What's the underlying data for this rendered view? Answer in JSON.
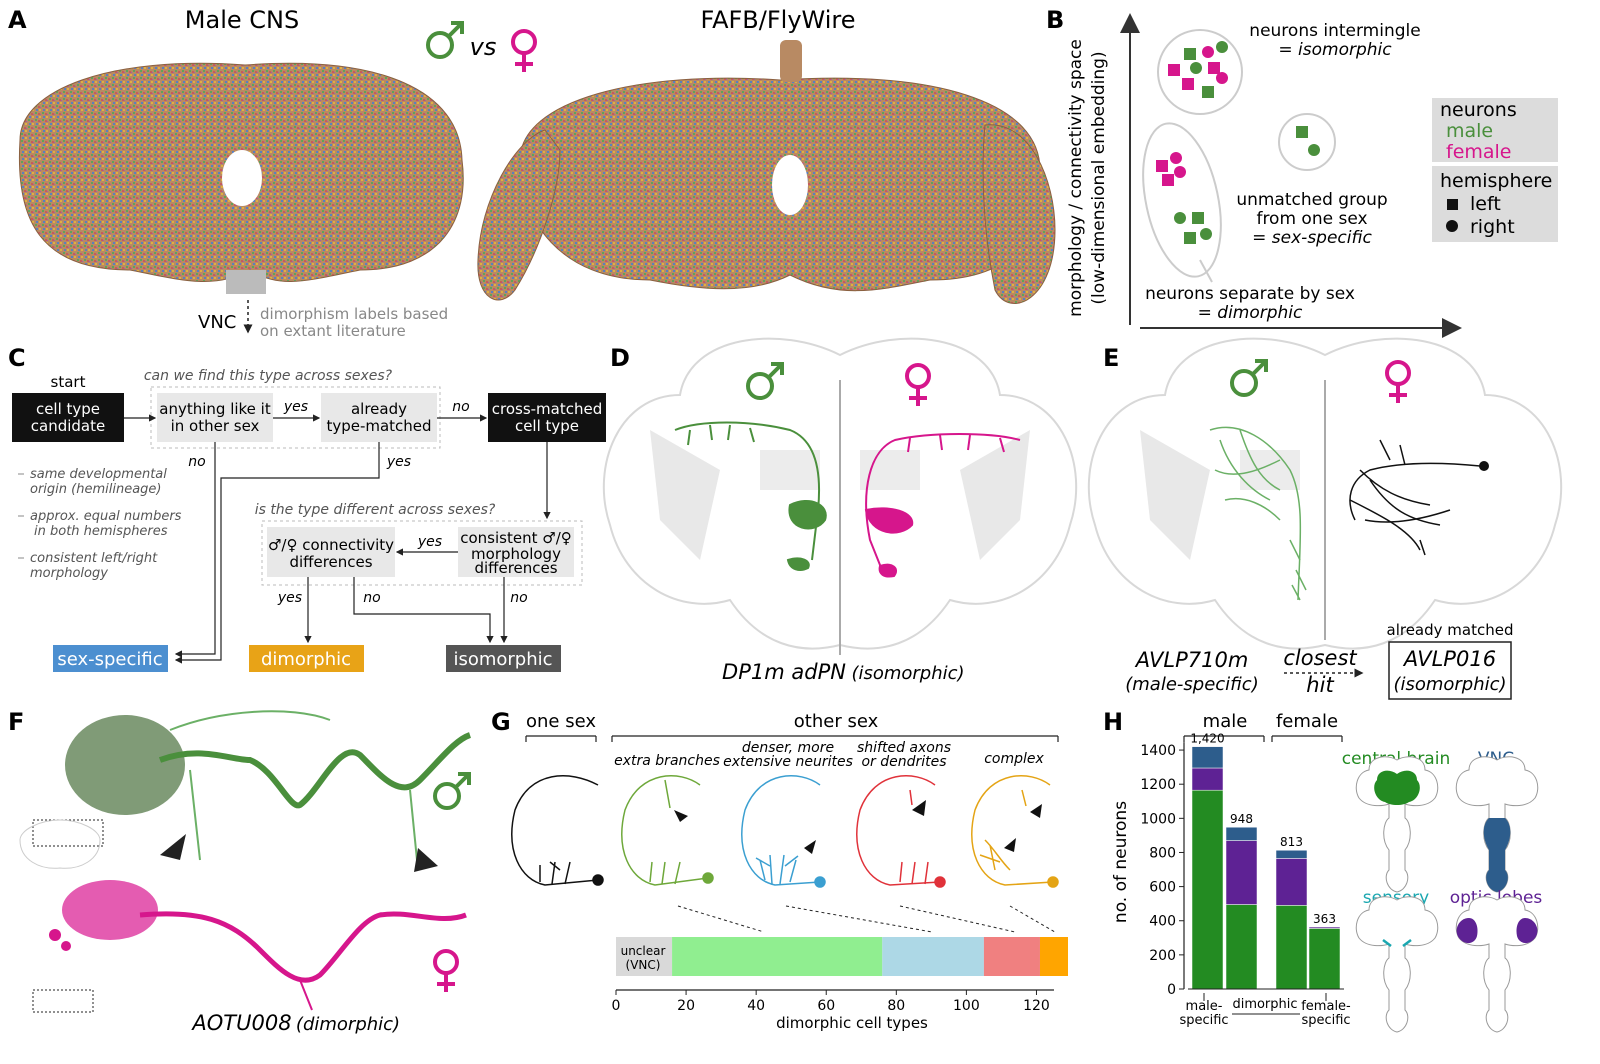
{
  "panels": {
    "A": {
      "letter": "A",
      "left_title": "Male CNS",
      "right_title": "FAFB/FlyWire",
      "vs": "vs",
      "vnc_label": "VNC",
      "dimorphism_note_1": "dimorphism labels based",
      "dimorphism_note_2": "on extant literature"
    },
    "B": {
      "letter": "B",
      "y_axis_1": "morphology / connectivity space",
      "y_axis_2": "(low-dimensional embedding)",
      "iso_1": "neurons intermingle",
      "iso_2": "= isomorphic",
      "spec_1": "unmatched group",
      "spec_2": "from one sex",
      "spec_3": "= sex-specific",
      "dim_1": "neurons separate by sex",
      "dim_2": "= dimorphic",
      "legend": {
        "neurons": "neurons",
        "male": "male",
        "female": "female",
        "hemisphere": "hemisphere",
        "left": "left",
        "right": "right"
      }
    },
    "C": {
      "letter": "C",
      "start": "start",
      "q1": "can we find this type across sexes?",
      "cand_1": "cell type",
      "cand_2": "candidate",
      "like_1": "anything like it",
      "like_2": "in other sex",
      "yes": "yes",
      "no": "no",
      "already_1": "already",
      "already_2": "type-matched",
      "cross_1": "cross-matched",
      "cross_2": "cell type",
      "crit_1a": "same developmental",
      "crit_1b": "origin (hemilineage)",
      "crit_2a": "approx. equal numbers",
      "crit_2b": "in both hemispheres",
      "crit_3a": "consistent left/right",
      "crit_3b": "morphology",
      "q2": "is the type different across sexes?",
      "conn_1": "♂/♀ connectivity",
      "conn_2": "differences",
      "morph_1": "consistent ♂/♀",
      "morph_2": "morphology",
      "morph_3": "differences",
      "sex_specific": "sex-specific",
      "dimorphic": "dimorphic",
      "isomorphic": "isomorphic"
    },
    "D": {
      "letter": "D",
      "caption_name": "DP1m adPN",
      "caption_class": "(isomorphic)"
    },
    "E": {
      "letter": "E",
      "left_name": "AVLP710m",
      "left_class": "(male-specific)",
      "closest": "closest",
      "hit": "hit",
      "already_matched": "already matched",
      "right_name": "AVLP016",
      "right_class": "(isomorphic)"
    },
    "F": {
      "letter": "F",
      "caption_name": "AOTU008",
      "caption_class": "(dimorphic)"
    },
    "G": {
      "letter": "G",
      "one_sex": "one sex",
      "other_sex": "other sex",
      "cat_1": "extra branches",
      "cat_2a": "denser, more",
      "cat_2b": "extensive neurites",
      "cat_3a": "shifted axons",
      "cat_3b": "or dendrites",
      "cat_4": "complex",
      "unclear_1": "unclear",
      "unclear_2": "(VNC)",
      "xlabel": "dimorphic cell types"
    },
    "H": {
      "letter": "H",
      "male": "male",
      "female": "female",
      "region_central": "central brain",
      "region_vnc": "VNC",
      "region_sensory": "sensory",
      "region_optic": "optic lobes"
    }
  },
  "colors": {
    "male": "#4a8f3c",
    "female": "#d6168c",
    "sex_specific": "#4c8fd0",
    "dimorphic": "#e8a317",
    "isomorphic": "#555555",
    "central_brain": "#238b22",
    "vnc": "#2d5d8c",
    "optic_lobes": "#5e2294",
    "sensory": "#1aa7b0"
  },
  "chart_data": [
    {
      "panel": "G",
      "type": "bar",
      "orientation": "horizontal-stacked",
      "xlabel": "dimorphic cell types",
      "xlim": [
        0,
        129
      ],
      "xticks": [
        0,
        20,
        40,
        60,
        80,
        100,
        120
      ],
      "segments": [
        {
          "name": "unclear (VNC)",
          "start": 0,
          "end": 16,
          "color": "#d9d9d9"
        },
        {
          "name": "extra branches",
          "start": 16,
          "end": 76,
          "color": "#90ee90"
        },
        {
          "name": "denser, more extensive neurites",
          "start": 76,
          "end": 105,
          "color": "#add8e6"
        },
        {
          "name": "shifted axons or dendrites",
          "start": 105,
          "end": 121,
          "color": "#f08080"
        },
        {
          "name": "complex",
          "start": 121,
          "end": 129,
          "color": "#ffa500"
        }
      ]
    },
    {
      "panel": "H",
      "type": "bar",
      "stacked": true,
      "ylabel": "no. of neurons",
      "ylim": [
        0,
        1500
      ],
      "yticks": [
        0,
        200,
        400,
        600,
        800,
        1000,
        1200,
        1400
      ],
      "categories": [
        "male-specific",
        "dimorphic male",
        "dimorphic female",
        "female-specific"
      ],
      "tick_labels": [
        "male-\nspecific",
        "dimorphic",
        "female-\nspecific"
      ],
      "totals": [
        1420,
        948,
        813,
        363
      ],
      "series": [
        {
          "name": "central brain",
          "color": "#238b22",
          "values": [
            1165,
            495,
            490,
            355
          ]
        },
        {
          "name": "optic lobes",
          "color": "#5e2294",
          "values": [
            130,
            375,
            275,
            8
          ]
        },
        {
          "name": "VNC",
          "color": "#2d5d8c",
          "values": [
            125,
            78,
            48,
            0
          ]
        }
      ]
    }
  ]
}
